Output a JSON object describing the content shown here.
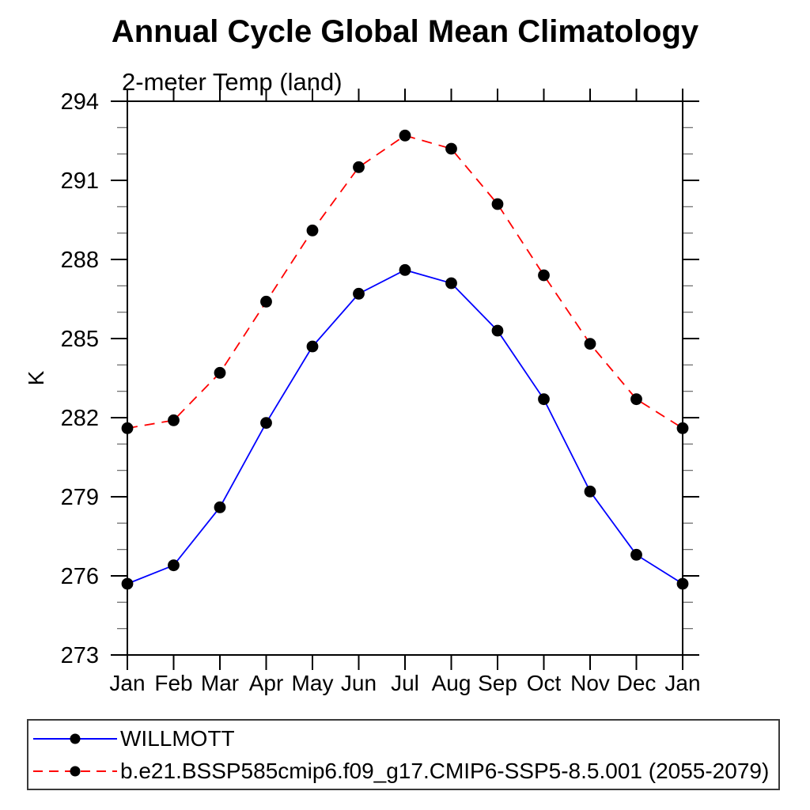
{
  "chart_data": {
    "type": "line",
    "title": "Annual Cycle Global Mean Climatology",
    "subtitle": "2-meter Temp (land)",
    "ylabel": "K",
    "x_categories": [
      "Jan",
      "Feb",
      "Mar",
      "Apr",
      "May",
      "Jun",
      "Jul",
      "Aug",
      "Sep",
      "Oct",
      "Nov",
      "Dec",
      "Jan"
    ],
    "ylim": [
      273,
      294
    ],
    "ytick_major": [
      273,
      276,
      279,
      282,
      285,
      288,
      291,
      294
    ],
    "ytick_minor_step": 1,
    "grid": false,
    "legend_position": "bottom-left-box",
    "series": [
      {
        "name": "WILLMOTT",
        "color": "#0000ff",
        "line_style": "solid",
        "marker": "filled-circle",
        "marker_color": "#000000",
        "values": [
          275.7,
          276.4,
          278.6,
          281.8,
          284.7,
          286.7,
          287.6,
          287.1,
          285.3,
          282.7,
          279.2,
          276.8,
          275.7
        ]
      },
      {
        "name": "b.e21.BSSP585cmip6.f09_g17.CMIP6-SSP5-8.5.001 (2055-2079)",
        "color": "#ff0000",
        "line_style": "dashed",
        "marker": "filled-circle",
        "marker_color": "#000000",
        "values": [
          281.6,
          281.9,
          283.7,
          286.4,
          289.1,
          291.5,
          292.7,
          292.2,
          290.1,
          287.4,
          284.8,
          282.7,
          281.6
        ]
      }
    ]
  }
}
